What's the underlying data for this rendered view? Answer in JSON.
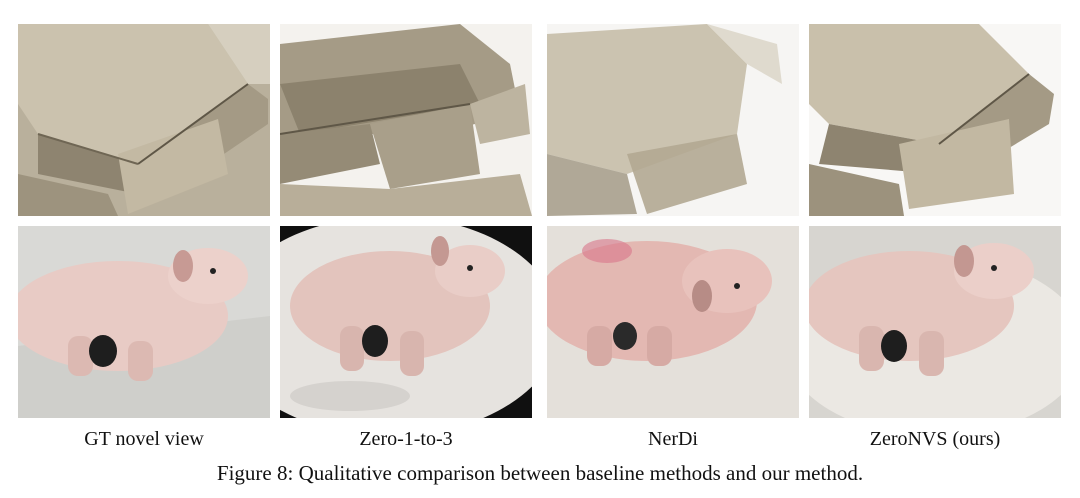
{
  "figure": {
    "number_label": "Figure 8:",
    "caption": "Qualitative comparison between baseline methods and our method."
  },
  "columns": [
    {
      "label": "GT novel view"
    },
    {
      "label": "Zero-1-to-3"
    },
    {
      "label": "NerDi"
    },
    {
      "label": "ZeroNVS (ours)"
    }
  ],
  "colors": {
    "stone_light": "#cfc6b4",
    "stone_mid": "#a89d86",
    "stone_dark": "#6f6654",
    "pig_light": "#f0d2cc",
    "pig_mid": "#d9aaa0",
    "pig_dark": "#8f6a63",
    "background_grey": "#dcdcd8"
  }
}
